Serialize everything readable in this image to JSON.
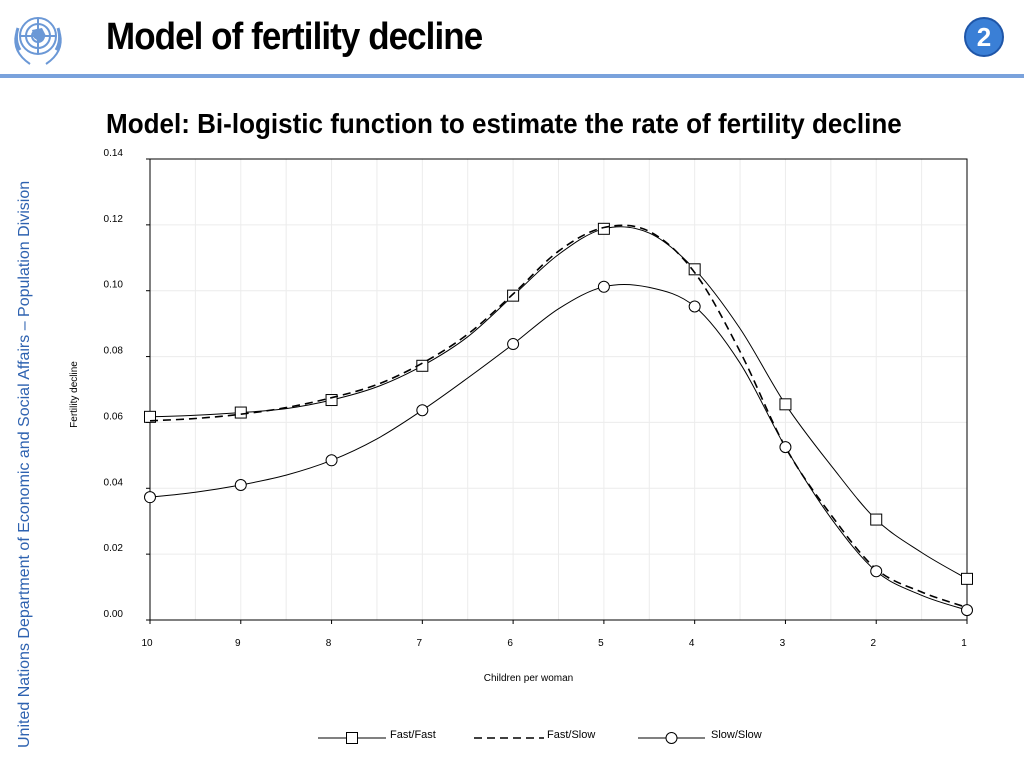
{
  "slide": {
    "title": "Model of fertility decline",
    "page_number": "2",
    "side_text": "United Nations Department of Economic and Social Affairs – Population Division",
    "logo_icon": "un-emblem-icon"
  },
  "colors": {
    "accent_blue": "#2e62b0",
    "rule_blue": "#7aa2dc",
    "badge_blue": "#3a7fd6"
  },
  "chart_data": {
    "type": "line",
    "title": "Model: Bi-logistic function to estimate the rate of fertility decline",
    "xlabel": "Children per woman",
    "ylabel": "Fertility decline",
    "x_reversed": true,
    "xlim": [
      10,
      1
    ],
    "ylim": [
      0,
      0.14
    ],
    "x_ticks": [
      "10",
      "9",
      "8",
      "7",
      "6",
      "5",
      "4",
      "3",
      "2",
      "1"
    ],
    "y_ticks": [
      "0.00",
      "0.02",
      "0.04",
      "0.06",
      "0.08",
      "0.10",
      "0.12",
      "0.14"
    ],
    "grid": true,
    "legend_position": "bottom",
    "series": [
      {
        "name": "Fast/Fast",
        "marker": "square",
        "line": "solid",
        "x": [
          10,
          9.5,
          9,
          8.5,
          8,
          7.5,
          7,
          6.5,
          6,
          5.5,
          5,
          4.5,
          4,
          3.5,
          3,
          2.5,
          2,
          1.5,
          1
        ],
        "y": [
          0.0617,
          0.0622,
          0.063,
          0.0642,
          0.0668,
          0.0708,
          0.0772,
          0.086,
          0.0985,
          0.111,
          0.1188,
          0.1175,
          0.1065,
          0.0885,
          0.0655,
          0.047,
          0.0305,
          0.0205,
          0.0125
        ],
        "marker_x": [
          10,
          9,
          8,
          7,
          6,
          5,
          4,
          3,
          2,
          1
        ],
        "marker_y": [
          0.0617,
          0.063,
          0.0668,
          0.0772,
          0.0985,
          0.1188,
          0.1065,
          0.0655,
          0.0305,
          0.0125
        ]
      },
      {
        "name": "Fast/Slow",
        "marker": "none",
        "line": "dashed",
        "x": [
          10,
          9.5,
          9,
          8.5,
          8,
          7.5,
          7,
          6.5,
          6,
          5.5,
          5,
          4.5,
          4,
          3.5,
          3,
          2.5,
          2,
          1.5,
          1
        ],
        "y": [
          0.0605,
          0.0612,
          0.0625,
          0.0645,
          0.0675,
          0.0715,
          0.078,
          0.0868,
          0.099,
          0.112,
          0.1192,
          0.118,
          0.1055,
          0.0815,
          0.0525,
          0.032,
          0.0155,
          0.0085,
          0.0038
        ],
        "marker_x": [],
        "marker_y": []
      },
      {
        "name": "Slow/Slow",
        "marker": "circle",
        "line": "solid",
        "x": [
          10,
          9.5,
          9,
          8.5,
          8,
          7.5,
          7,
          6.5,
          6,
          5.5,
          5,
          4.5,
          4,
          3.5,
          3,
          2.5,
          2,
          1.5,
          1
        ],
        "y": [
          0.0373,
          0.0388,
          0.041,
          0.044,
          0.0485,
          0.055,
          0.0637,
          0.0735,
          0.0838,
          0.0945,
          0.1012,
          0.101,
          0.0952,
          0.078,
          0.0525,
          0.031,
          0.0148,
          0.0075,
          0.003
        ],
        "marker_x": [
          10,
          9,
          8,
          7,
          6,
          5,
          4,
          3,
          2,
          1
        ],
        "marker_y": [
          0.0373,
          0.041,
          0.0485,
          0.0637,
          0.0838,
          0.1012,
          0.0952,
          0.0525,
          0.0148,
          0.003
        ]
      }
    ]
  }
}
